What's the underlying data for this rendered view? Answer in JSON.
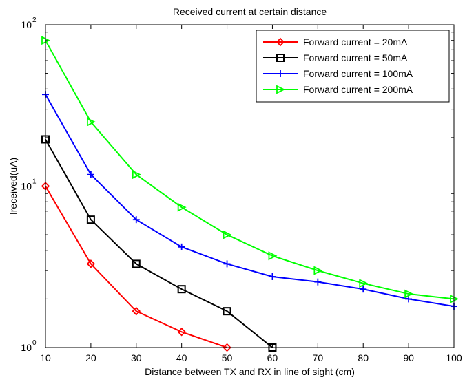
{
  "chart_data": {
    "type": "line",
    "title": "Received current at certain distance",
    "xlabel": "Distance between TX and RX in line of sight (cm)",
    "ylabel": "Ireceived(uA)",
    "x_scale": "linear",
    "y_scale": "log",
    "xlim": [
      10,
      100
    ],
    "ylim": [
      1,
      100
    ],
    "x_ticks": [
      10,
      20,
      30,
      40,
      50,
      60,
      70,
      80,
      90,
      100
    ],
    "y_ticks": [
      {
        "value": 1,
        "base": "10",
        "exp": "0"
      },
      {
        "value": 10,
        "base": "10",
        "exp": "1"
      },
      {
        "value": 100,
        "base": "10",
        "exp": "2"
      }
    ],
    "grid": false,
    "legend_position": "top-right",
    "series": [
      {
        "name": "Forward current = 20mA",
        "color": "#ff0000",
        "marker": "diamond",
        "x": [
          10,
          20,
          30,
          40,
          50
        ],
        "y": [
          10,
          3.3,
          1.68,
          1.25,
          1.0
        ]
      },
      {
        "name": "Forward current = 50mA",
        "color": "#000000",
        "marker": "square",
        "x": [
          10,
          20,
          30,
          40,
          50,
          60
        ],
        "y": [
          19.5,
          6.2,
          3.3,
          2.3,
          1.68,
          1.0
        ]
      },
      {
        "name": "Forward current = 100mA",
        "color": "#0000ff",
        "marker": "plus",
        "x": [
          10,
          20,
          30,
          40,
          50,
          60,
          70,
          80,
          90,
          100
        ],
        "y": [
          37,
          11.8,
          6.2,
          4.2,
          3.3,
          2.75,
          2.55,
          2.3,
          2.0,
          1.8
        ]
      },
      {
        "name": "Forward current = 200mA",
        "color": "#00ff00",
        "marker": "triangle-right",
        "x": [
          10,
          20,
          30,
          40,
          50,
          60,
          70,
          80,
          90,
          100
        ],
        "y": [
          80,
          25,
          11.8,
          7.4,
          5.0,
          3.7,
          3.0,
          2.5,
          2.15,
          2.0
        ]
      }
    ]
  }
}
